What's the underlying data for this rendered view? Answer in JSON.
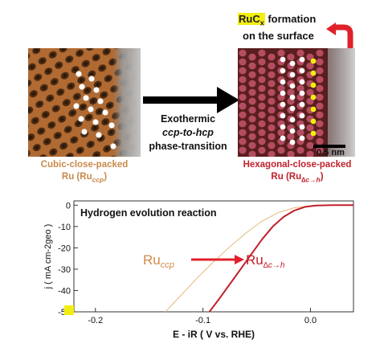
{
  "top_left": {
    "caption_line1": "Cubic-close-packed",
    "caption_line2_main": "Ru (Ru",
    "caption_line2_sub": "ccp",
    "caption_line2_end": ")",
    "caption_color": "#c8884a"
  },
  "top_right": {
    "surface_label_ru": "RuC",
    "surface_label_x": "x",
    "surface_label_rest": " formation",
    "surface_label_line2": "on the surface",
    "scale_bar_label": "0.5 nm",
    "caption_line1": "Hexagonal-close-packed",
    "caption_line2_main": "Ru (Ru",
    "caption_line2_sub": "∆c→h",
    "caption_line2_end": ")",
    "caption_color": "#c0202a"
  },
  "arrow": {
    "line1": "Exothermic",
    "line2": "ccp-to-hcp",
    "line3": "phase-transition"
  },
  "colors": {
    "ccp_curve": "#e8c48f",
    "hcp_curve": "#c0202a",
    "accent_yellow": "#f2ee10",
    "ccp_label": "#d08a4a"
  },
  "chart_data": {
    "type": "line",
    "title": "Hydrogen evolution reaction",
    "xlabel": "E - iR ( V vs. RHE)",
    "ylabel": "j ( mA cm-2geo )",
    "xlim": [
      -0.22,
      0.04
    ],
    "ylim": [
      -50,
      2
    ],
    "xticks": [
      -0.2,
      -0.1,
      0.0
    ],
    "xtick_labels": [
      "-0.2",
      "-0.1",
      "0.0"
    ],
    "yticks": [
      0,
      -10,
      -20,
      -30,
      -40,
      -50
    ],
    "ytick_labels": [
      "0",
      "-10",
      "-20",
      "-30",
      "-40",
      "-50"
    ],
    "series": [
      {
        "name": "Ru_ccp",
        "color": "#e8c48f",
        "x": [
          -0.135,
          -0.12,
          -0.105,
          -0.09,
          -0.075,
          -0.06,
          -0.045,
          -0.03,
          -0.015,
          0.0,
          0.015,
          0.03
        ],
        "y": [
          -50,
          -42,
          -34,
          -26.5,
          -19.5,
          -13,
          -7.5,
          -3.5,
          -1.2,
          -0.3,
          0,
          0
        ]
      },
      {
        "name": "Ru_delta_c_h",
        "color": "#c0202a",
        "x": [
          -0.094,
          -0.085,
          -0.075,
          -0.065,
          -0.055,
          -0.045,
          -0.035,
          -0.025,
          -0.015,
          -0.005,
          0.005,
          0.02,
          0.04
        ],
        "y": [
          -50,
          -44,
          -37,
          -30,
          -23,
          -16,
          -10,
          -5.5,
          -2.5,
          -0.8,
          -0.2,
          0,
          0
        ]
      }
    ],
    "annotation": {
      "ccp_label_main": "Ru",
      "ccp_label_sub": "ccp",
      "hcp_label_main": "Ru",
      "hcp_label_sub": "∆c→h"
    }
  }
}
